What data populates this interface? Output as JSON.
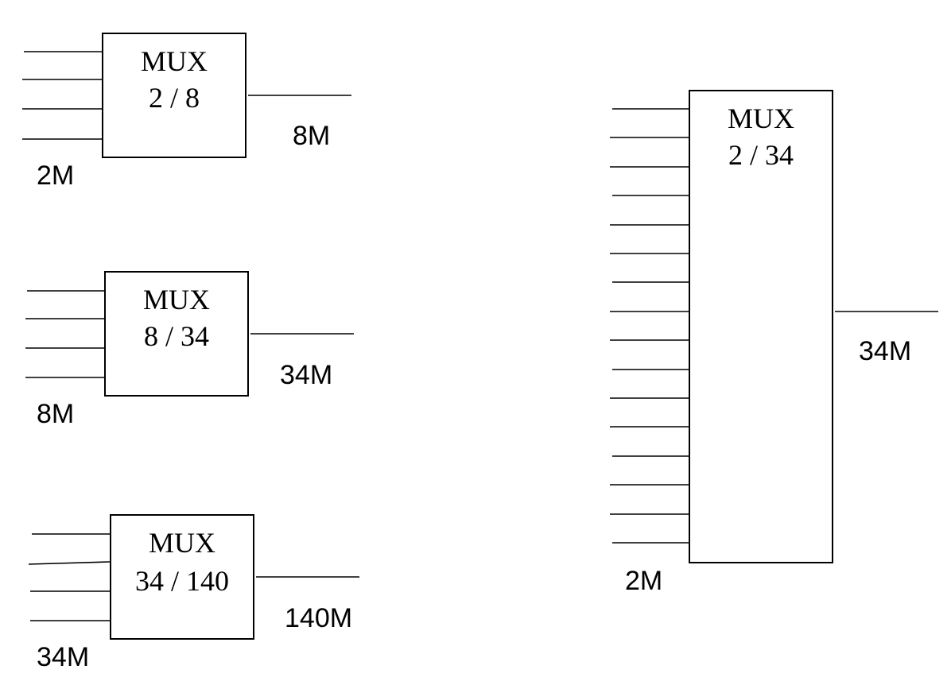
{
  "diagram": {
    "mux_2_8": {
      "name": "MUX",
      "ratio": "2 / 8",
      "input_rate": "2M",
      "output_rate": "8M"
    },
    "mux_8_34": {
      "name": "MUX",
      "ratio": "8 / 34",
      "input_rate": "8M",
      "output_rate": "34M"
    },
    "mux_34_140": {
      "name": "MUX",
      "ratio": "34 / 140",
      "input_rate": "34M",
      "output_rate": "140M"
    },
    "mux_2_34": {
      "name": "MUX",
      "ratio": "2 / 34",
      "input_rate": "2M",
      "output_rate": "34M"
    }
  }
}
